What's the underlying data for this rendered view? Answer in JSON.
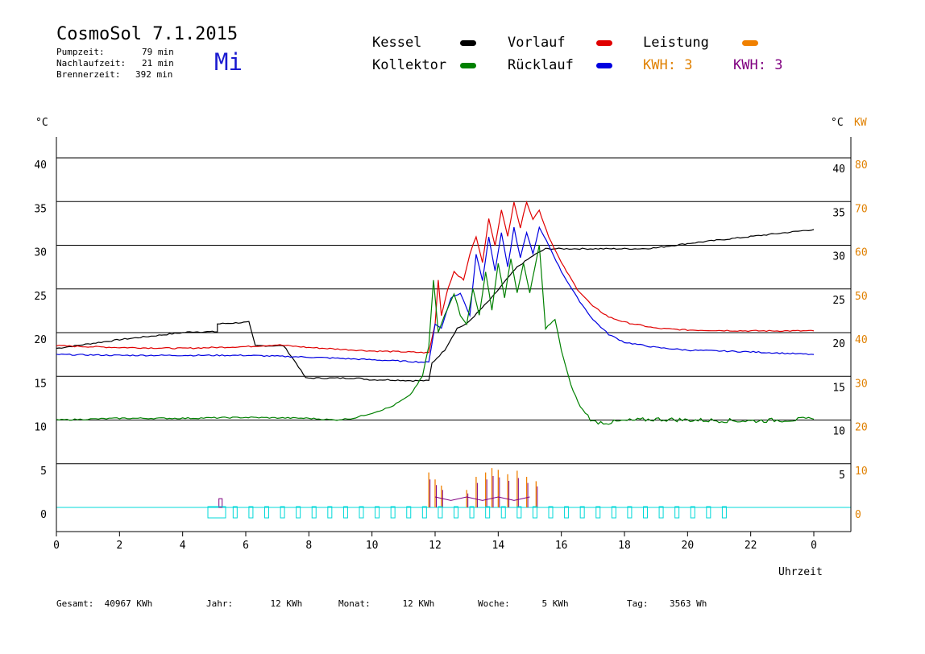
{
  "header": {
    "title": "CosmoSol 7.1.2015",
    "day": "Mi",
    "info": [
      {
        "label": "Pumpzeit:",
        "value": "79 min"
      },
      {
        "label": "Nachlaufzeit:",
        "value": "21 min"
      },
      {
        "label": "Brennerzeit:",
        "value": "392 min"
      }
    ]
  },
  "legend": {
    "kessel": {
      "label": "Kessel",
      "color": "#000000"
    },
    "kollektor": {
      "label": "Kollektor",
      "color": "#008000"
    },
    "vorlauf": {
      "label": "Vorlauf",
      "color": "#e00000"
    },
    "ruecklauf": {
      "label": "Rücklauf",
      "color": "#0000e0"
    },
    "leistung": {
      "label": "Leistung",
      "color": "#f08000"
    },
    "kwh1": {
      "label": "KWH:",
      "value": "3",
      "color": "#e08000"
    },
    "kwh2": {
      "label": "KWH:",
      "value": "3",
      "color": "#800080"
    }
  },
  "footer": [
    {
      "label": "Gesamt:",
      "value": "40967 KWh"
    },
    {
      "label": "Jahr:",
      "value": "12 KWh"
    },
    {
      "label": "Monat:",
      "value": "12 KWh"
    },
    {
      "label": "Woche:",
      "value": "5 KWh"
    },
    {
      "label": "Tag:",
      "value": "3563 Wh"
    }
  ],
  "chart_data": {
    "type": "line",
    "left_unit": "°C",
    "right_unit": "°C",
    "right_unit2": "KW",
    "xlabel": "Uhrzeit",
    "x_ticks": [
      "0",
      "2",
      "4",
      "6",
      "8",
      "10",
      "12",
      "14",
      "16",
      "18",
      "20",
      "22",
      "0"
    ],
    "y_left_ticks": [
      "0",
      "5",
      "10",
      "15",
      "20",
      "25",
      "30",
      "35",
      "40"
    ],
    "y_right_temp_ticks": [
      "5",
      "10",
      "15",
      "20",
      "25",
      "30",
      "35",
      "40"
    ],
    "y_right_kw_ticks": [
      "0",
      "10",
      "20",
      "30",
      "40",
      "50",
      "60",
      "70",
      "80"
    ],
    "xlim": [
      0,
      24
    ],
    "ylim": [
      -3,
      45
    ],
    "grid": true,
    "series": [
      {
        "name": "Kessel",
        "color": "#000000",
        "points": [
          [
            0,
            18.2
          ],
          [
            2,
            19.2
          ],
          [
            4,
            20.0
          ],
          [
            4.3,
            20.1
          ],
          [
            5.1,
            20.1
          ],
          [
            5.1,
            21.0
          ],
          [
            6.1,
            21.2
          ],
          [
            6.3,
            18.5
          ],
          [
            7.2,
            18.5
          ],
          [
            7.6,
            16.5
          ],
          [
            7.9,
            14.8
          ],
          [
            9.5,
            14.8
          ],
          [
            10,
            14.6
          ],
          [
            10.5,
            14.6
          ],
          [
            11.3,
            14.5
          ],
          [
            11.8,
            14.5
          ],
          [
            11.9,
            16.5
          ],
          [
            12.3,
            18.0
          ],
          [
            12.7,
            20.5
          ],
          [
            13.0,
            21.0
          ],
          [
            13.4,
            22.5
          ],
          [
            13.8,
            24.0
          ],
          [
            14.2,
            25.8
          ],
          [
            14.6,
            27.5
          ],
          [
            15.1,
            28.8
          ],
          [
            15.5,
            29.6
          ],
          [
            16.5,
            29.6
          ],
          [
            17.5,
            29.6
          ],
          [
            18.5,
            29.6
          ],
          [
            19,
            29.7
          ],
          [
            20,
            30.2
          ],
          [
            21,
            30.6
          ],
          [
            22,
            31.0
          ],
          [
            23,
            31.4
          ],
          [
            24,
            31.8
          ]
        ]
      },
      {
        "name": "Vorlauf",
        "color": "#e00000",
        "points": [
          [
            0,
            18.5
          ],
          [
            2,
            18.3
          ],
          [
            4,
            18.2
          ],
          [
            6,
            18.4
          ],
          [
            7,
            18.6
          ],
          [
            8,
            18.3
          ],
          [
            9,
            18.1
          ],
          [
            10,
            17.9
          ],
          [
            11,
            17.8
          ],
          [
            11.8,
            17.7
          ],
          [
            12.0,
            21.0
          ],
          [
            12.1,
            26.0
          ],
          [
            12.2,
            22.0
          ],
          [
            12.4,
            25.0
          ],
          [
            12.6,
            27.0
          ],
          [
            12.9,
            26.0
          ],
          [
            13.1,
            29.0
          ],
          [
            13.3,
            31.0
          ],
          [
            13.5,
            28.0
          ],
          [
            13.7,
            33.0
          ],
          [
            13.9,
            30.0
          ],
          [
            14.1,
            34.0
          ],
          [
            14.3,
            31.0
          ],
          [
            14.5,
            35.0
          ],
          [
            14.7,
            32.0
          ],
          [
            14.9,
            35.0
          ],
          [
            15.1,
            33.0
          ],
          [
            15.3,
            34.0
          ],
          [
            15.6,
            31.0
          ],
          [
            16.0,
            28.0
          ],
          [
            16.5,
            25.0
          ],
          [
            17,
            23.0
          ],
          [
            17.5,
            21.8
          ],
          [
            18,
            21.2
          ],
          [
            19,
            20.5
          ],
          [
            20,
            20.3
          ],
          [
            22,
            20.2
          ],
          [
            24,
            20.2
          ]
        ]
      },
      {
        "name": "Rücklauf",
        "color": "#0000e0",
        "points": [
          [
            0,
            17.5
          ],
          [
            2,
            17.4
          ],
          [
            4,
            17.4
          ],
          [
            6,
            17.4
          ],
          [
            8,
            17.2
          ],
          [
            10,
            16.9
          ],
          [
            11.8,
            16.6
          ],
          [
            12.0,
            21.0
          ],
          [
            12.2,
            20.5
          ],
          [
            12.5,
            24.0
          ],
          [
            12.8,
            24.5
          ],
          [
            13.1,
            22.0
          ],
          [
            13.3,
            29.0
          ],
          [
            13.5,
            26.0
          ],
          [
            13.7,
            31.0
          ],
          [
            13.9,
            27.0
          ],
          [
            14.1,
            31.5
          ],
          [
            14.3,
            27.5
          ],
          [
            14.5,
            32.0
          ],
          [
            14.7,
            28.5
          ],
          [
            14.9,
            31.5
          ],
          [
            15.1,
            29.0
          ],
          [
            15.3,
            32.0
          ],
          [
            15.6,
            30.0
          ],
          [
            16.0,
            27.0
          ],
          [
            16.5,
            24.0
          ],
          [
            17,
            21.5
          ],
          [
            17.5,
            19.8
          ],
          [
            18,
            18.9
          ],
          [
            19,
            18.3
          ],
          [
            20,
            18.0
          ],
          [
            22,
            17.8
          ],
          [
            24,
            17.5
          ]
        ]
      },
      {
        "name": "Kollektor",
        "color": "#008000",
        "points": [
          [
            0,
            10.0
          ],
          [
            2,
            10.2
          ],
          [
            4,
            10.2
          ],
          [
            6,
            10.3
          ],
          [
            8,
            10.2
          ],
          [
            8.8,
            10.0
          ],
          [
            9.4,
            10.2
          ],
          [
            10,
            10.8
          ],
          [
            10.6,
            11.5
          ],
          [
            11.2,
            12.8
          ],
          [
            11.6,
            15.0
          ],
          [
            11.8,
            18.5
          ],
          [
            11.95,
            26.0
          ],
          [
            12.1,
            20.0
          ],
          [
            12.3,
            22.0
          ],
          [
            12.6,
            24.5
          ],
          [
            12.8,
            22.0
          ],
          [
            13.0,
            21.0
          ],
          [
            13.2,
            25.0
          ],
          [
            13.4,
            22.0
          ],
          [
            13.6,
            27.0
          ],
          [
            13.8,
            22.5
          ],
          [
            14.0,
            28.0
          ],
          [
            14.2,
            24.0
          ],
          [
            14.4,
            28.5
          ],
          [
            14.6,
            24.5
          ],
          [
            14.8,
            28.0
          ],
          [
            15.0,
            24.5
          ],
          [
            15.3,
            30.0
          ],
          [
            15.5,
            20.5
          ],
          [
            15.8,
            21.5
          ],
          [
            16.0,
            18.0
          ],
          [
            16.3,
            14.0
          ],
          [
            16.6,
            11.5
          ],
          [
            17,
            9.8
          ],
          [
            17.5,
            9.7
          ],
          [
            18,
            9.9
          ],
          [
            19,
            10.1
          ],
          [
            20,
            10.0
          ],
          [
            22,
            9.9
          ],
          [
            24,
            10.1
          ]
        ]
      }
    ]
  }
}
